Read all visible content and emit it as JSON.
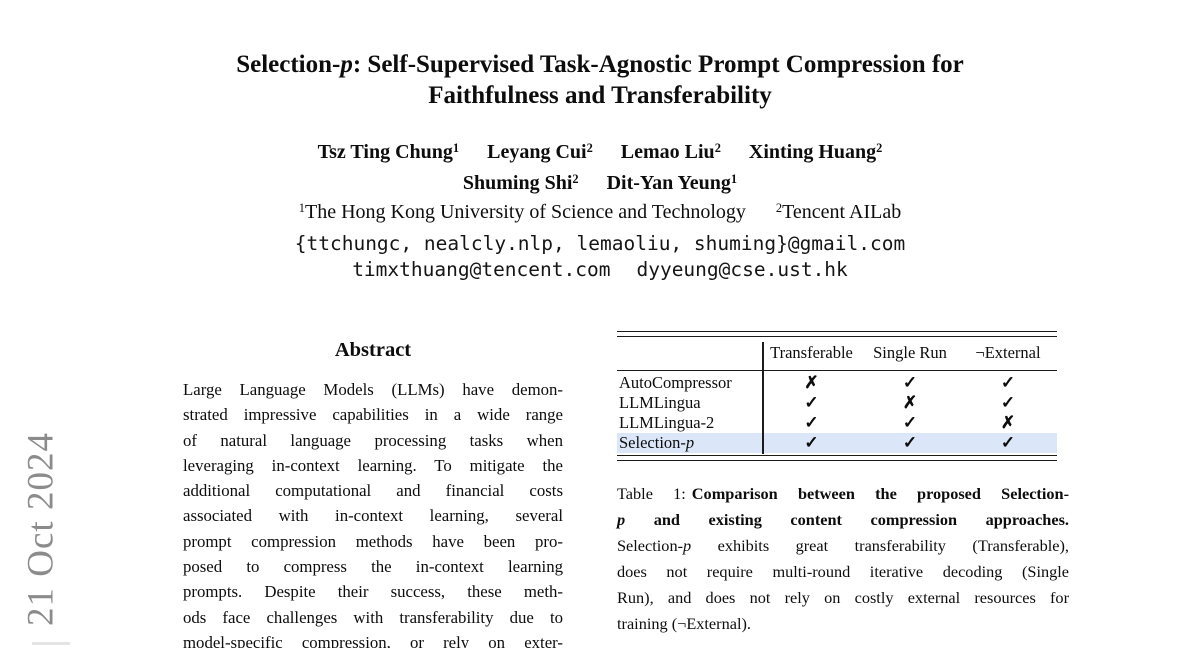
{
  "colors": {
    "highlight_row": "#dbe7f8",
    "watermark": "#8b8b8b",
    "rule": "#1b1b1b"
  },
  "watermark": {
    "date_text": "21 Oct 2024"
  },
  "title": {
    "part_prefix": "Selection-",
    "part_p": "p",
    "part_rest": ": Self-Supervised Task-Agnostic Prompt Compression for",
    "line2": "Faithfulness and Transferability"
  },
  "authors": {
    "row1": [
      {
        "name": "Tsz Ting Chung",
        "sup": "1"
      },
      {
        "name": "Leyang Cui",
        "sup": "2"
      },
      {
        "name": "Lemao Liu",
        "sup": "2"
      },
      {
        "name": "Xinting Huang",
        "sup": "2"
      }
    ],
    "row2": [
      {
        "name": "Shuming Shi",
        "sup": "2"
      },
      {
        "name": "Dit-Yan Yeung",
        "sup": "1"
      }
    ]
  },
  "affiliations": [
    {
      "sup": "1",
      "name": "The Hong Kong University of Science and Technology"
    },
    {
      "sup": "2",
      "name": "Tencent AILab"
    }
  ],
  "emails": {
    "line1": "{ttchungc, nealcly.nlp, lemaoliu, shuming}@gmail.com",
    "line2a": "timxthuang@tencent.com",
    "line2b": "dyyeung@cse.ust.hk"
  },
  "abstract": {
    "heading": "Abstract",
    "lines": [
      "Large Language Models (LLMs) have demon-",
      "strated impressive capabilities in a wide range",
      "of natural language processing tasks when",
      "leveraging in-context learning. To mitigate the",
      "additional computational and financial costs",
      "associated with in-context learning, several",
      "prompt compression methods have been pro-",
      "posed to compress the in-context learning",
      "prompts. Despite their success, these meth-",
      "ods face challenges with transferability due to",
      "model-specific compression, or rely on exter-"
    ]
  },
  "table": {
    "headers": [
      "Transferable",
      "Single Run",
      "¬External"
    ],
    "rows": [
      {
        "method": "AutoCompressor",
        "marks": [
          "✗",
          "✓",
          "✓"
        ]
      },
      {
        "method": "LLMLingua",
        "marks": [
          "✓",
          "✗",
          "✓"
        ]
      },
      {
        "method": "LLMLingua-2",
        "marks": [
          "✓",
          "✓",
          "✗"
        ]
      },
      {
        "method_prefix": "Selection-",
        "method_p": "p",
        "marks": [
          "✓",
          "✓",
          "✓"
        ]
      }
    ]
  },
  "caption": {
    "label": "Table 1:",
    "l1_bold": "Comparison between the proposed Selection-",
    "l2_p": "p",
    "l2_rest": " and existing content compression approaches.",
    "l3_pre": "Selection-",
    "l3_p": "p",
    "l3_rest": " exhibits great transferability (Transferable),",
    "l4": "does not require multi-round iterative decoding (Single",
    "l5": "Run), and does not rely on costly external resources for",
    "l6": "training (¬External)."
  }
}
